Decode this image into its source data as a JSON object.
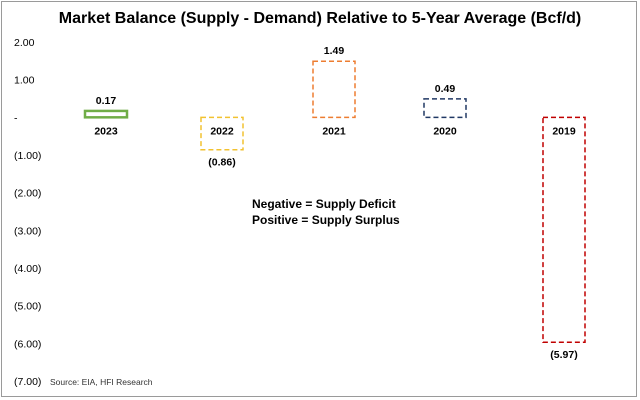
{
  "chart_data": {
    "type": "bar",
    "title": "Market Balance (Supply - Demand) Relative to 5-Year Average (Bcf/d)",
    "categories": [
      "2023",
      "2022",
      "2021",
      "2020",
      "2019"
    ],
    "values": [
      0.17,
      -0.86,
      1.49,
      0.49,
      -5.97
    ],
    "value_labels": [
      "0.17",
      "(0.86)",
      "1.49",
      "0.49",
      "(5.97)"
    ],
    "colors": [
      "#70ad47",
      "#f2c230",
      "#ed7d31",
      "#203864",
      "#c00000"
    ],
    "ylim": [
      -7,
      2
    ],
    "ytick_values": [
      2,
      1,
      0,
      -1,
      -2,
      -3,
      -4,
      -5,
      -6,
      -7
    ],
    "ytick_labels": [
      "2.00",
      "1.00",
      "-",
      "(1.00)",
      "(2.00)",
      "(3.00)",
      "(4.00)",
      "(5.00)",
      "(6.00)",
      "(7.00)"
    ],
    "xlabel": "",
    "ylabel": "",
    "grid": false,
    "annotations": [
      "Negative = Supply Deficit",
      "Positive = Supply Surplus"
    ],
    "source": "Source: EIA, HFI Research"
  }
}
